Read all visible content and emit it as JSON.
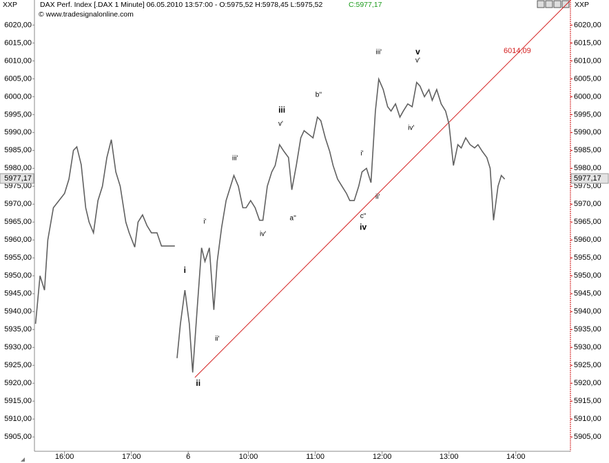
{
  "header": {
    "symbol_left": "XXP",
    "symbol_right": "XXP",
    "title": "DAX Perf. Index [.DAX  1 Minute] 06.05.2010 13:57:00 - O:5975,52 H:5978,45 L:5975,52",
    "close": "C:5977,17",
    "copyright": "© www.tradesignalonline.com"
  },
  "chart_data": {
    "type": "line",
    "color": "#606060",
    "xlim": [
      0,
      481
    ],
    "ylim": [
      5901,
      6027
    ],
    "xticks": [
      {
        "value": 27,
        "label": "16:00"
      },
      {
        "value": 87,
        "label": "17:00"
      },
      {
        "value": 138,
        "label": "6"
      },
      {
        "value": 192,
        "label": "10:00"
      },
      {
        "value": 252,
        "label": "11:00"
      },
      {
        "value": 312,
        "label": "12:00"
      },
      {
        "value": 372,
        "label": "13:00"
      },
      {
        "value": 432,
        "label": "14:00"
      }
    ],
    "yticks": [
      {
        "value": 5905,
        "label": "5905,00"
      },
      {
        "value": 5910,
        "label": "5910,00"
      },
      {
        "value": 5915,
        "label": "5915,00"
      },
      {
        "value": 5920,
        "label": "5920,00"
      },
      {
        "value": 5925,
        "label": "5925,00"
      },
      {
        "value": 5930,
        "label": "5930,00"
      },
      {
        "value": 5935,
        "label": "5935,00"
      },
      {
        "value": 5940,
        "label": "5940,00"
      },
      {
        "value": 5945,
        "label": "5945,00"
      },
      {
        "value": 5950,
        "label": "5950,00"
      },
      {
        "value": 5955,
        "label": "5955,00"
      },
      {
        "value": 5960,
        "label": "5960,00"
      },
      {
        "value": 5965,
        "label": "5965,00"
      },
      {
        "value": 5970,
        "label": "5970,00"
      },
      {
        "value": 5975,
        "label": "5975,00"
      },
      {
        "value": 5980,
        "label": "5980,00"
      },
      {
        "value": 5985,
        "label": "5985,00"
      },
      {
        "value": 5990,
        "label": "5990,00"
      },
      {
        "value": 5995,
        "label": "5995,00"
      },
      {
        "value": 6000,
        "label": "6000,00"
      },
      {
        "value": 6005,
        "label": "6005,00"
      },
      {
        "value": 6010,
        "label": "6010,00"
      },
      {
        "value": 6015,
        "label": "6015,00"
      },
      {
        "value": 6020,
        "label": "6020,00"
      }
    ],
    "x": [
      1,
      5,
      9,
      12,
      17,
      22,
      27,
      31,
      35,
      38,
      42,
      46,
      49,
      53,
      57,
      61,
      65,
      69,
      73,
      77,
      82,
      85,
      90,
      93,
      97,
      101,
      105,
      110,
      114,
      126,
      127,
      128,
      131,
      135,
      139,
      142,
      146,
      150,
      153,
      157,
      161,
      164,
      168,
      172,
      176,
      179,
      183,
      187,
      190,
      194,
      198,
      202,
      205,
      209,
      213,
      216,
      220,
      224,
      228,
      231,
      235,
      239,
      242,
      246,
      250,
      254,
      257,
      261,
      265,
      268,
      272,
      276,
      280,
      283,
      287,
      291,
      294,
      298,
      302,
      306,
      309,
      313,
      317,
      320,
      324,
      328,
      331,
      335,
      339,
      343,
      346,
      350,
      354,
      357,
      361,
      365,
      369,
      372,
      376,
      380,
      383,
      387,
      391,
      395,
      398,
      402,
      406,
      409,
      412,
      416,
      419,
      422
    ],
    "values": [
      5936.6,
      5950,
      5946,
      5960,
      5969,
      5971,
      5973,
      5977,
      5985,
      5986,
      5981,
      5969,
      5965,
      5962,
      5971,
      5975,
      5983,
      5988,
      5979,
      5975,
      5965,
      5962,
      5958,
      5965,
      5967,
      5964,
      5962,
      5962,
      5958.3,
      5958.3,
      null,
      5927,
      5936.6,
      5946,
      5936.6,
      5923,
      5940.5,
      5957.8,
      5954,
      5957.8,
      5940.5,
      5954,
      5963.5,
      5971,
      5975,
      5978,
      5975,
      5969,
      5969,
      5971,
      5969,
      5965.5,
      5965.5,
      5975,
      5979,
      5980.8,
      5986.6,
      5984.7,
      5983,
      5974,
      5980.8,
      5988.5,
      5990.5,
      5989.5,
      5988.5,
      5994.3,
      5993.3,
      5988.5,
      5984.7,
      5980.8,
      5977,
      5975,
      5973,
      5971,
      5971,
      5975,
      5979,
      5980,
      5976,
      5996,
      6004.9,
      6002,
      5997.2,
      5996,
      5998,
      5994.3,
      5996,
      5998,
      5997.2,
      6004,
      6003,
      6000,
      6002,
      5999,
      6002,
      5998,
      5996,
      5992.4,
      5980.8,
      5986.6,
      5985.7,
      5988.5,
      5986.6,
      5985.7,
      5986.6,
      5984.7,
      5983,
      5980,
      5965.5,
      5975,
      5978,
      5977
    ],
    "last_price": {
      "value": 5977.17,
      "label": "5977,17"
    },
    "trendline": {
      "color": "#d42020",
      "x": [
        144,
        481
      ],
      "values": [
        5921.6,
        6026.9
      ],
      "label": "6014,09"
    },
    "annotations": [
      {
        "text": "i",
        "x": 135,
        "y": 5951.4,
        "bold": true
      },
      {
        "text": "ii",
        "x": 147,
        "y": 5919.9,
        "bold": true
      },
      {
        "text": "i'",
        "x": 153,
        "y": 5965.1,
        "bold": false
      },
      {
        "text": "ii'",
        "x": 164,
        "y": 5932.4,
        "bold": false
      },
      {
        "text": "iii'",
        "x": 180,
        "y": 5982.8,
        "bold": false
      },
      {
        "text": "iv'",
        "x": 205,
        "y": 5961.6,
        "bold": false
      },
      {
        "text": "iii",
        "x": 222,
        "y": 5996.2,
        "bold": true
      },
      {
        "text": "v'",
        "x": 221,
        "y": 5992.4,
        "bold": false
      },
      {
        "text": "a''",
        "x": 232,
        "y": 5966,
        "bold": false
      },
      {
        "text": "b''",
        "x": 255,
        "y": 6000.5,
        "bold": false
      },
      {
        "text": "i'",
        "x": 294,
        "y": 5984.1,
        "bold": false
      },
      {
        "text": "c''",
        "x": 295,
        "y": 5966.6,
        "bold": false
      },
      {
        "text": "iv",
        "x": 295,
        "y": 5963.5,
        "bold": true
      },
      {
        "text": "ii'",
        "x": 308,
        "y": 5972,
        "bold": false
      },
      {
        "text": "iii'",
        "x": 309,
        "y": 6012.4,
        "bold": false
      },
      {
        "text": "v",
        "x": 344,
        "y": 6012.4,
        "bold": true
      },
      {
        "text": "v'",
        "x": 344,
        "y": 6010.1,
        "bold": false
      },
      {
        "text": "iv'",
        "x": 338,
        "y": 5991.2,
        "bold": false
      }
    ]
  }
}
